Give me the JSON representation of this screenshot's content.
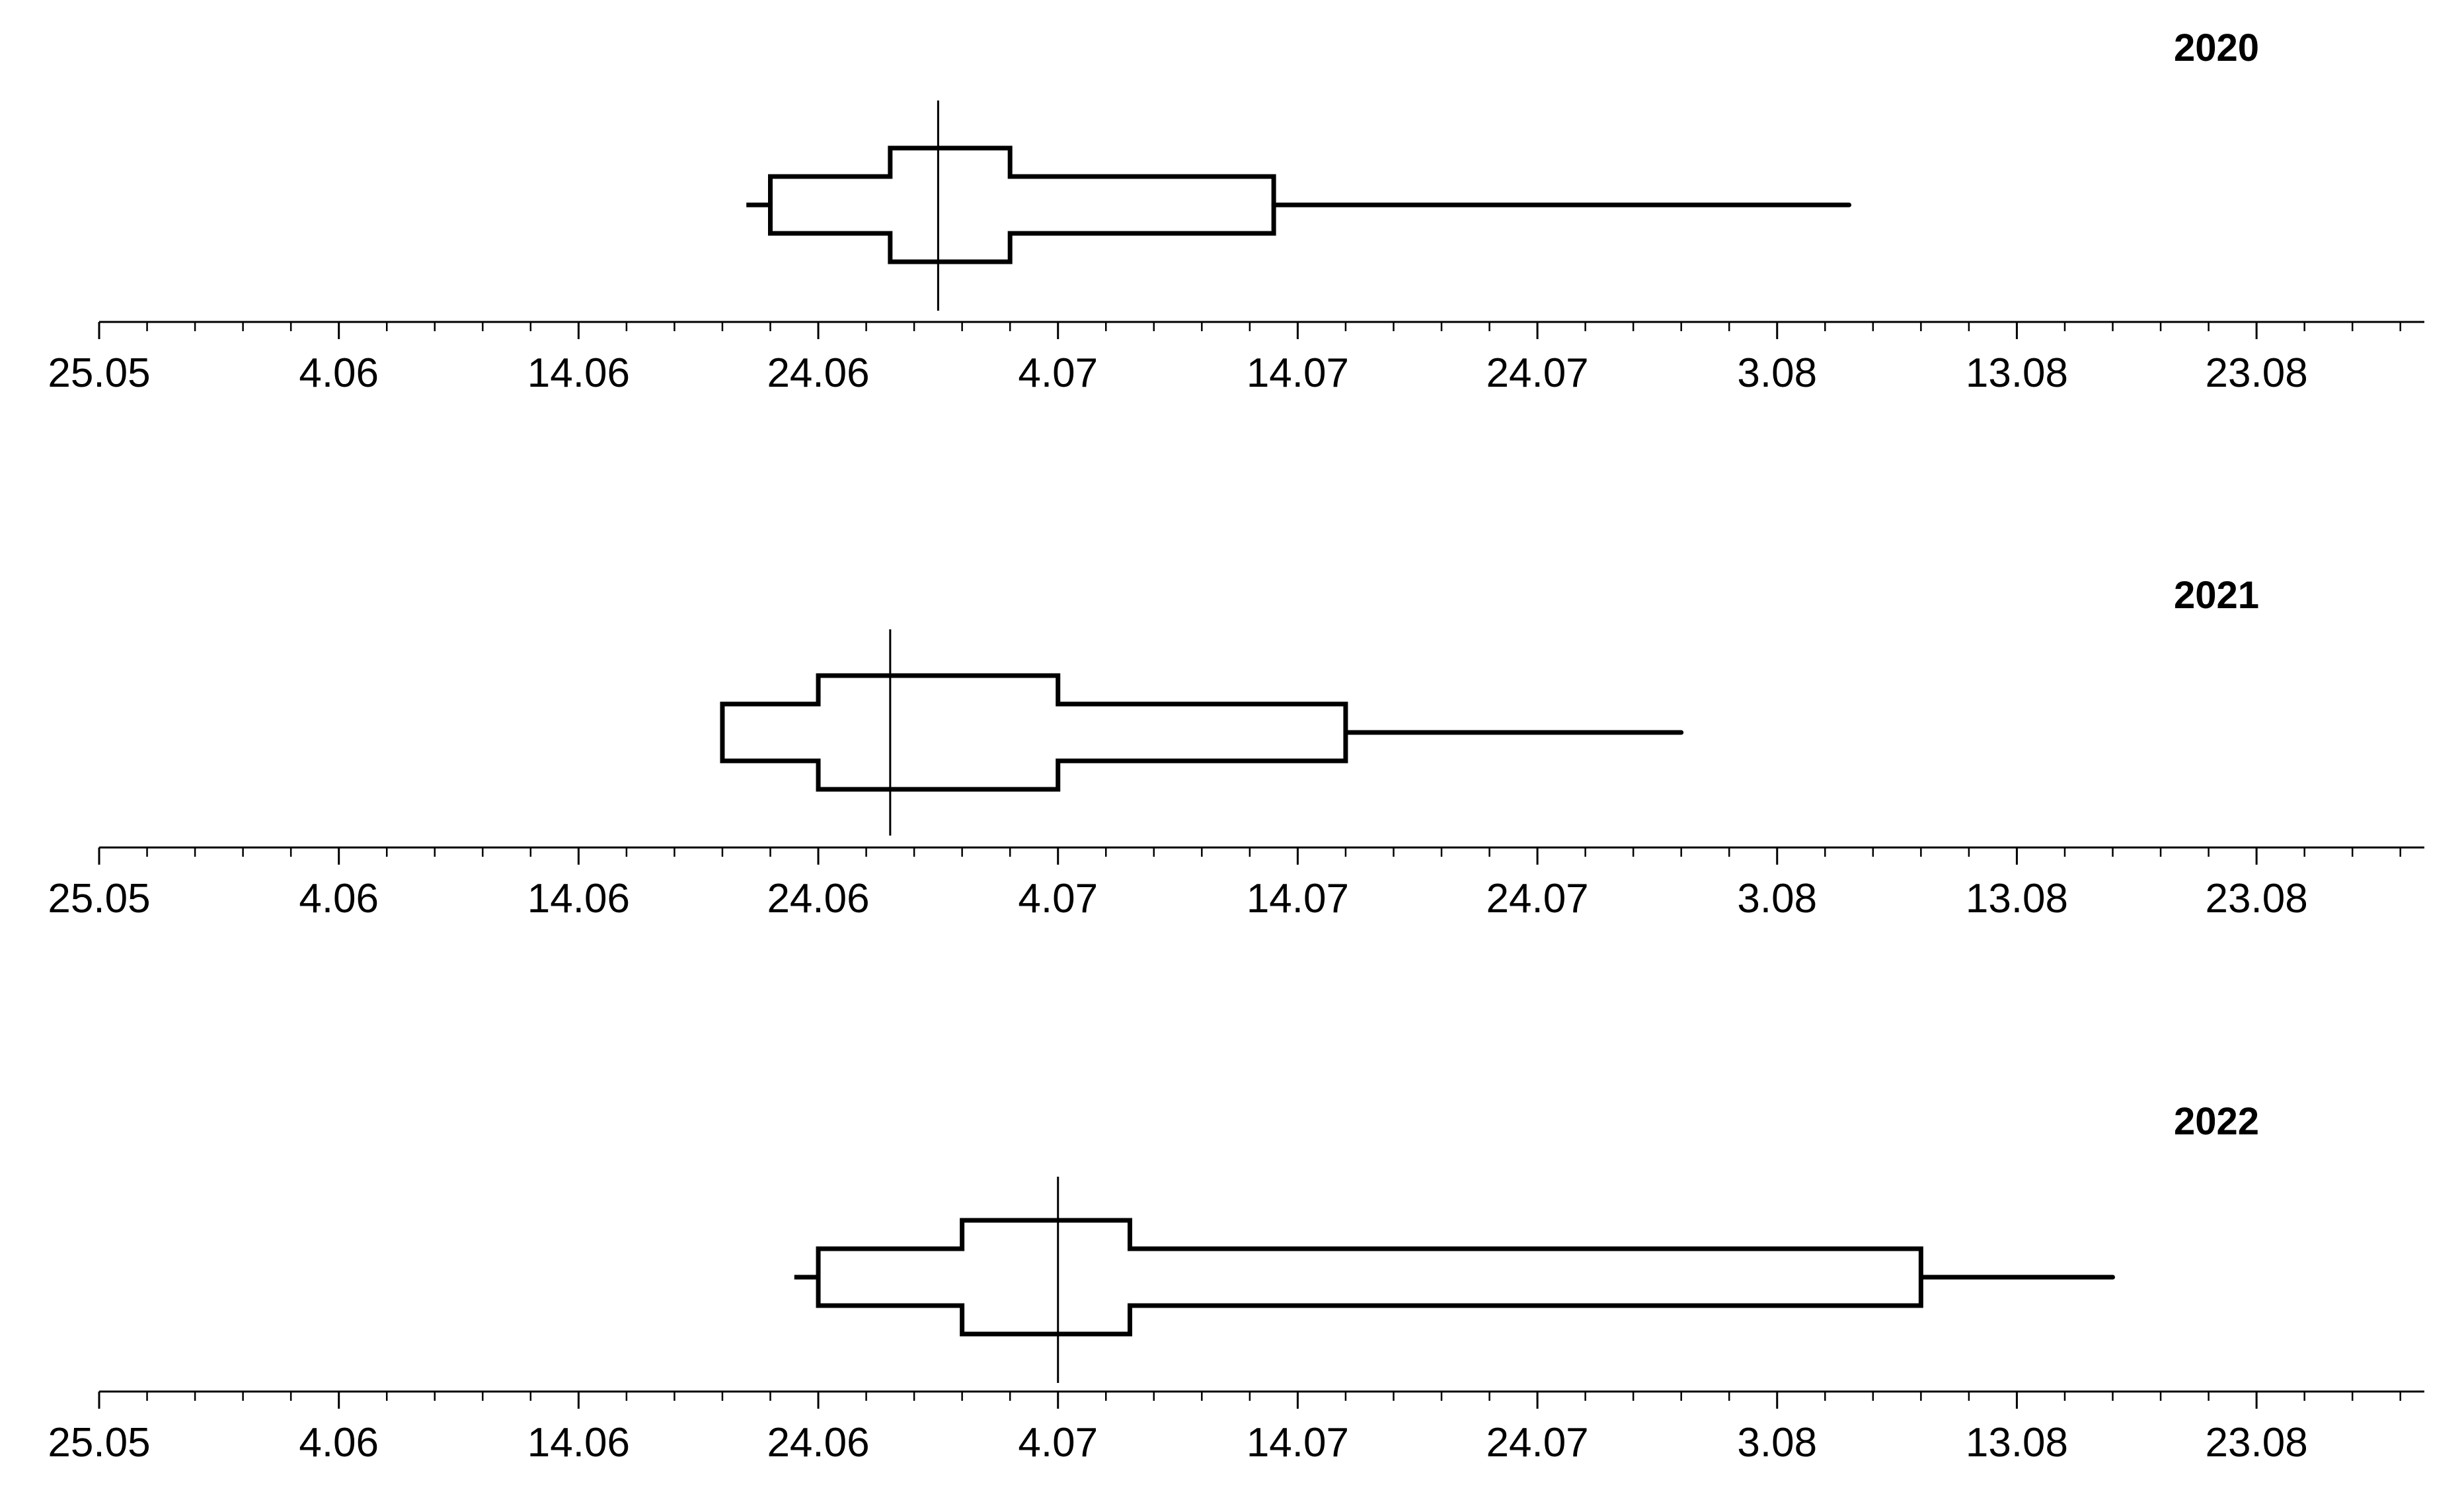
{
  "chart_data": [
    {
      "type": "box",
      "title": "2020",
      "x_axis": {
        "type": "date",
        "range": [
          "05-25",
          "08-30"
        ],
        "tick_labels": [
          "25.05",
          "4.06",
          "14.06",
          "24.06",
          "4.07",
          "14.07",
          "24.07",
          "3.08",
          "13.08",
          "23.08"
        ],
        "minor_tick_interval_days": 2
      },
      "stats": {
        "min": "06-21",
        "p10": "06-22",
        "q1": "06-27",
        "median": "06-29",
        "q3": "07-02",
        "p90": "07-13",
        "max": "08-06"
      }
    },
    {
      "type": "box",
      "title": "2021",
      "x_axis": {
        "type": "date",
        "range": [
          "05-25",
          "08-30"
        ],
        "tick_labels": [
          "25.05",
          "4.06",
          "14.06",
          "24.06",
          "4.07",
          "14.07",
          "24.07",
          "3.08",
          "13.08",
          "23.08"
        ],
        "minor_tick_interval_days": 2
      },
      "stats": {
        "min": "06-20",
        "p10": "06-20",
        "q1": "06-24",
        "median": "06-27",
        "q3": "07-04",
        "p90": "07-16",
        "max": "07-30"
      }
    },
    {
      "type": "box",
      "title": "2022",
      "x_axis": {
        "type": "date",
        "range": [
          "05-25",
          "08-30"
        ],
        "tick_labels": [
          "25.05",
          "4.06",
          "14.06",
          "24.06",
          "4.07",
          "14.07",
          "24.07",
          "3.08",
          "13.08",
          "23.08"
        ],
        "minor_tick_interval_days": 2
      },
      "stats": {
        "min": "06-23",
        "p10": "06-24",
        "q1": "06-30",
        "median": "07-04",
        "q3": "07-07",
        "p90": "08-09",
        "max": "08-17"
      }
    }
  ]
}
